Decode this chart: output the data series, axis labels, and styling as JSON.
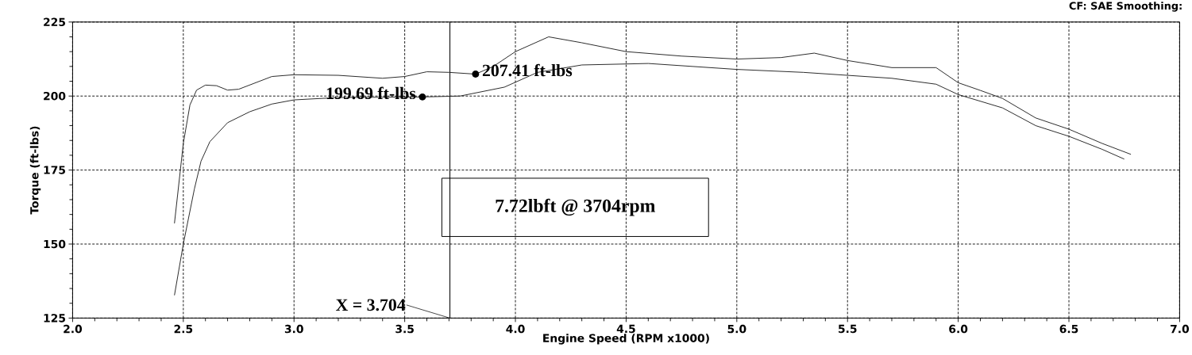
{
  "chart_data": {
    "type": "line",
    "xlabel": "Engine Speed (RPM x1000)",
    "ylabel": "Torque (ft-lbs)",
    "xlim": [
      2.0,
      7.0
    ],
    "ylim": [
      125,
      225
    ],
    "xticks": [
      {
        "value": 2.0,
        "label": "2.0"
      },
      {
        "value": 2.5,
        "label": "2.5"
      },
      {
        "value": 3.0,
        "label": "3.0"
      },
      {
        "value": 3.5,
        "label": "3.5"
      },
      {
        "value": 4.0,
        "label": "4.0"
      },
      {
        "value": 4.5,
        "label": "4.5"
      },
      {
        "value": 5.0,
        "label": "5.0"
      },
      {
        "value": 5.5,
        "label": "5.5"
      },
      {
        "value": 6.0,
        "label": "6.0"
      },
      {
        "value": 6.5,
        "label": "6.5"
      },
      {
        "value": 7.0,
        "label": "7.0"
      }
    ],
    "yticks": [
      125,
      150,
      175,
      200,
      225
    ],
    "grid": true,
    "marker": "none",
    "line_style": "solid",
    "series": [
      {
        "color": "#2b2b2b",
        "x": [
          2.46,
          2.5,
          2.53,
          2.56,
          2.6,
          2.65,
          2.7,
          2.75,
          2.9,
          3.0,
          3.2,
          3.4,
          3.5,
          3.6,
          3.7,
          3.82,
          3.9,
          4.0,
          4.15,
          4.3,
          4.5,
          4.75,
          5.0,
          5.2,
          5.35,
          5.5,
          5.7,
          5.9,
          6.0,
          6.1,
          6.2,
          6.35,
          6.5,
          6.65,
          6.78
        ],
        "values": [
          157,
          184,
          197,
          202,
          203.7,
          203.5,
          202,
          202.3,
          206.6,
          207.2,
          207,
          206,
          206.6,
          208.2,
          208,
          207.41,
          210,
          215,
          220,
          218,
          215,
          213.5,
          212.5,
          213,
          214.5,
          212,
          209.6,
          209.6,
          204.5,
          201.9,
          199.2,
          192.6,
          188.8,
          184,
          180.3
        ]
      },
      {
        "color": "#2b2b2b",
        "x": [
          2.46,
          2.5,
          2.55,
          2.58,
          2.62,
          2.7,
          2.8,
          2.9,
          3.0,
          3.2,
          3.4,
          3.58,
          3.75,
          3.95,
          4.1,
          4.3,
          4.6,
          4.8,
          5.0,
          5.3,
          5.5,
          5.7,
          5.9,
          6.0,
          6.2,
          6.35,
          6.5,
          6.65,
          6.75
        ],
        "values": [
          132.7,
          150,
          168.6,
          178,
          184.6,
          191,
          194.7,
          197.3,
          198.7,
          199.5,
          199.6,
          199.69,
          200,
          203,
          208,
          210.5,
          211,
          210,
          209,
          208,
          207,
          206,
          204,
          200.5,
          196,
          190,
          186.4,
          182,
          178.7
        ]
      }
    ],
    "ref_lines": [
      {
        "axis": "x",
        "value": 3.704,
        "label": "X = 3.704",
        "color": "#1a1a1a",
        "line_style": "solid"
      }
    ],
    "annotations": [
      {
        "text": "199.69 ft-lbs",
        "x": 3.58,
        "y": 199.69
      },
      {
        "text": "207.41 ft-lbs",
        "x": 3.82,
        "y": 207.41
      },
      "7.72lbft @ 3704rpm",
      "CF: SAE  Smoothing:"
    ]
  }
}
